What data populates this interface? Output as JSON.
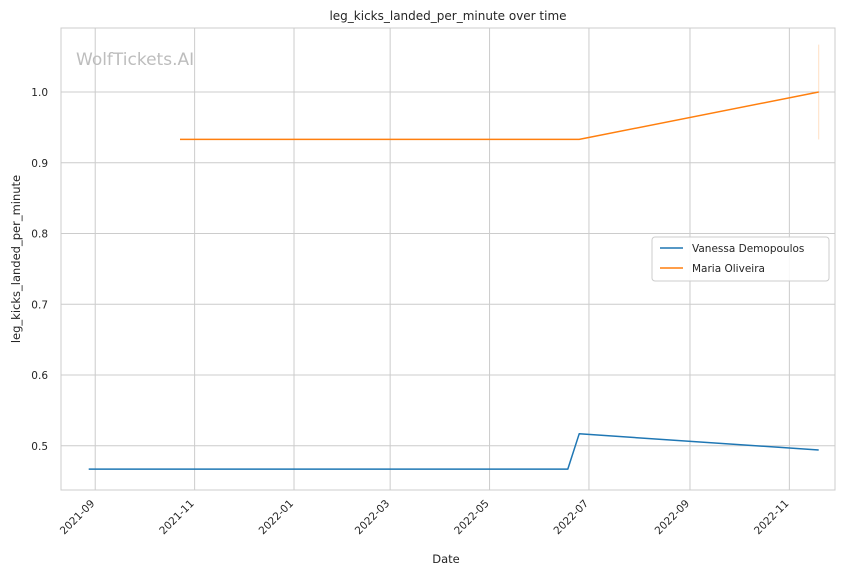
{
  "chart_data": {
    "type": "line",
    "title": "leg_kicks_landed_per_minute over time",
    "xlabel": "Date",
    "ylabel": "leg_kicks_landed_per_minute",
    "watermark": "WolfTickets.AI",
    "x_ticks": [
      "2021-09",
      "2021-11",
      "2022-01",
      "2022-03",
      "2022-05",
      "2022-07",
      "2022-09",
      "2022-11"
    ],
    "y_ticks": [
      "0.5",
      "0.6",
      "0.7",
      "0.8",
      "0.9",
      "1.0"
    ],
    "xlim": [
      "2021-08-11",
      "2022-11-29"
    ],
    "ylim": [
      0.4375,
      1.0905
    ],
    "grid": true,
    "legend_position": "center-right",
    "series": [
      {
        "name": "Vanessa Demopoulos",
        "color": "#1f77b4",
        "points": [
          {
            "x": "2021-08-28",
            "y": 0.467
          },
          {
            "x": "2022-06-18",
            "y": 0.467
          },
          {
            "x": "2022-06-25",
            "y": 0.517
          },
          {
            "x": "2022-11-19",
            "y": 0.494
          }
        ]
      },
      {
        "name": "Maria Oliveira",
        "color": "#ff7f0e",
        "points": [
          {
            "x": "2021-10-23",
            "y": 0.933
          },
          {
            "x": "2022-06-25",
            "y": 0.933
          },
          {
            "x": "2022-11-19",
            "y": 1.0
          }
        ]
      }
    ],
    "error_bars": [
      {
        "x": "2022-11-19",
        "y_low": 0.933,
        "y_high": 1.067,
        "color": "#ff7f0e"
      }
    ]
  }
}
